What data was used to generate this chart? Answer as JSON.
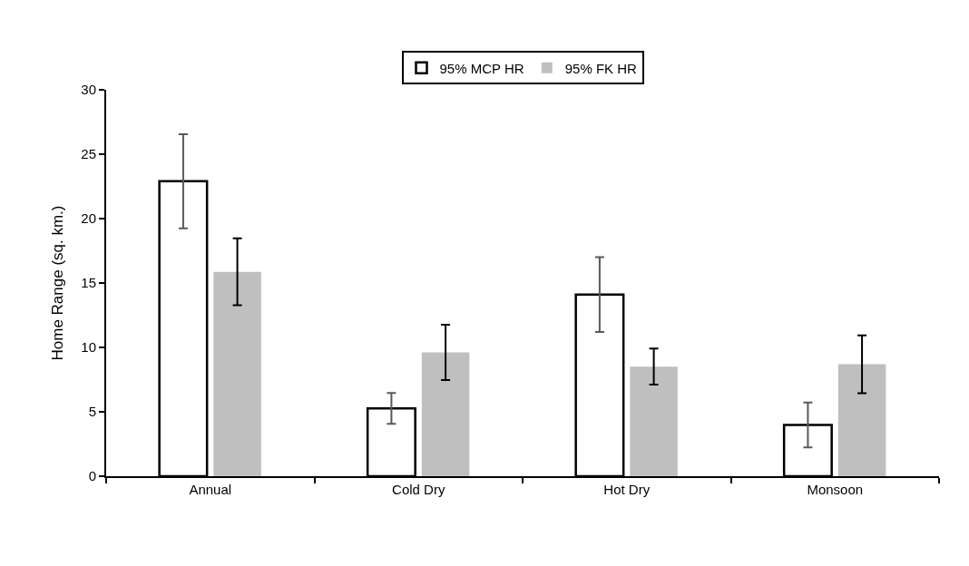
{
  "chart_data": {
    "type": "bar",
    "ylabel": "Home Range (sq. km.)",
    "categories": [
      "Annual",
      "Cold Dry",
      "Hot Dry",
      "Monsoon"
    ],
    "series": [
      {
        "name": "95% MCP HR",
        "color": "#ffffff",
        "values": [
          22.9,
          5.27,
          14.1,
          3.98
        ],
        "errors": [
          3.65,
          1.2,
          2.9,
          1.75
        ]
      },
      {
        "name": "95% FK HR",
        "color": "#bfbfbf",
        "values": [
          15.87,
          9.61,
          8.51,
          8.69
        ],
        "errors": [
          2.6,
          2.15,
          1.4,
          2.25
        ]
      }
    ],
    "ylim": [
      0,
      30
    ],
    "yticks": [
      0,
      5,
      10,
      15,
      20,
      25,
      30
    ],
    "legend": "top"
  }
}
